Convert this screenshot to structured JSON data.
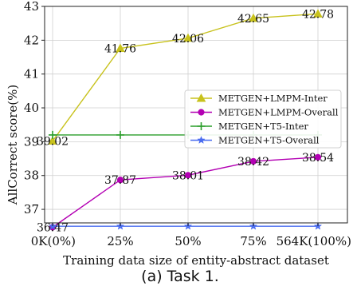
{
  "chart_data": {
    "type": "line",
    "xlabel": "Training data size of entity-abstract dataset",
    "ylabel": "AllCorrect score(%)",
    "caption": "(a) Task 1.",
    "categories": [
      "0K(0%)",
      "25%",
      "50%",
      "75%",
      "564K(100%)"
    ],
    "ylim": [
      36.6,
      43.0
    ],
    "yticks": [
      37,
      38,
      39,
      40,
      41,
      42,
      43
    ],
    "grid": true,
    "legend_position": "right-middle",
    "series": [
      {
        "name": "METGEN+LMPM-Inter",
        "values": [
          39.02,
          41.76,
          42.06,
          42.65,
          42.78
        ],
        "color": "#c8c21d",
        "marker": "triangle",
        "labels": [
          "39.02",
          "41.76",
          "42.06",
          "42.65",
          "42.78"
        ]
      },
      {
        "name": "METGEN+LMPM-Overall",
        "values": [
          36.47,
          37.87,
          38.01,
          38.42,
          38.54
        ],
        "color": "#b300b3",
        "marker": "circle",
        "labels": [
          "36.47",
          "37.87",
          "38.01",
          "38.42",
          "38.54"
        ]
      },
      {
        "name": "METGEN+T5-Inter",
        "values": [
          39.2,
          39.2,
          39.2,
          39.2,
          39.2
        ],
        "color": "#2a9d2a",
        "marker": "plus",
        "labels": []
      },
      {
        "name": "METGEN+T5-Overall",
        "values": [
          36.5,
          36.5,
          36.5,
          36.5,
          36.5
        ],
        "color": "#4a6cf0",
        "marker": "star",
        "labels": []
      }
    ]
  }
}
